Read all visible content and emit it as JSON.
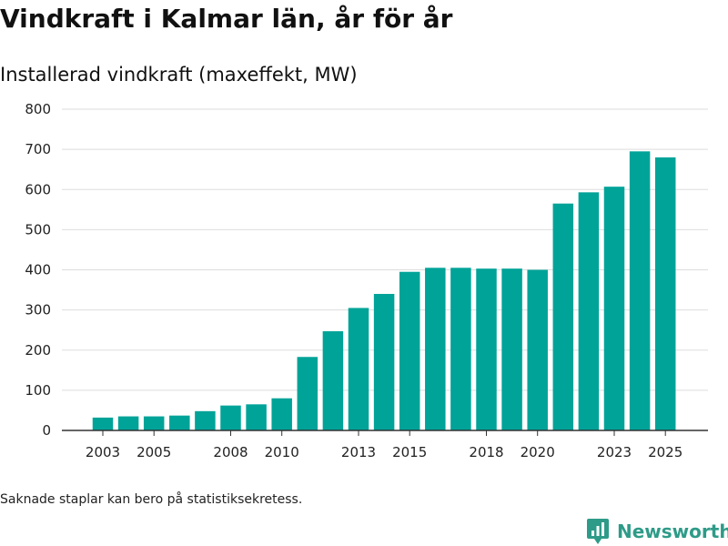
{
  "header": {
    "title": "Vindkraft i Kalmar län, år för år",
    "subtitle": "Installerad vindkraft (maxeffekt, MW)"
  },
  "footer": {
    "note": "Saknade staplar kan bero på statistiksekretess.",
    "brand": "Newsworthy"
  },
  "colors": {
    "bar": "#00a398",
    "grid": "#dddddd",
    "axis": "#333333",
    "brand": "#2e9b88"
  },
  "chart_data": {
    "type": "bar",
    "title": "Vindkraft i Kalmar län, år för år",
    "subtitle": "Installerad vindkraft (maxeffekt, MW)",
    "xlabel": "",
    "ylabel": "",
    "ylim": [
      0,
      800
    ],
    "yticks": [
      0,
      100,
      200,
      300,
      400,
      500,
      600,
      700,
      800
    ],
    "grid": true,
    "categories": [
      "2003",
      "2004",
      "2005",
      "2006",
      "2007",
      "2008",
      "2009",
      "2010",
      "2011",
      "2012",
      "2013",
      "2014",
      "2015",
      "2016",
      "2017",
      "2018",
      "2019",
      "2020",
      "2021",
      "2022",
      "2023",
      "2024",
      "2025"
    ],
    "xtick_labels": [
      "2003",
      "2005",
      "2008",
      "2010",
      "2013",
      "2015",
      "2018",
      "2020",
      "2023",
      "2025"
    ],
    "values": [
      32,
      35,
      35,
      37,
      48,
      62,
      65,
      80,
      183,
      247,
      305,
      340,
      395,
      405,
      405,
      403,
      403,
      400,
      565,
      593,
      607,
      695,
      680
    ]
  }
}
